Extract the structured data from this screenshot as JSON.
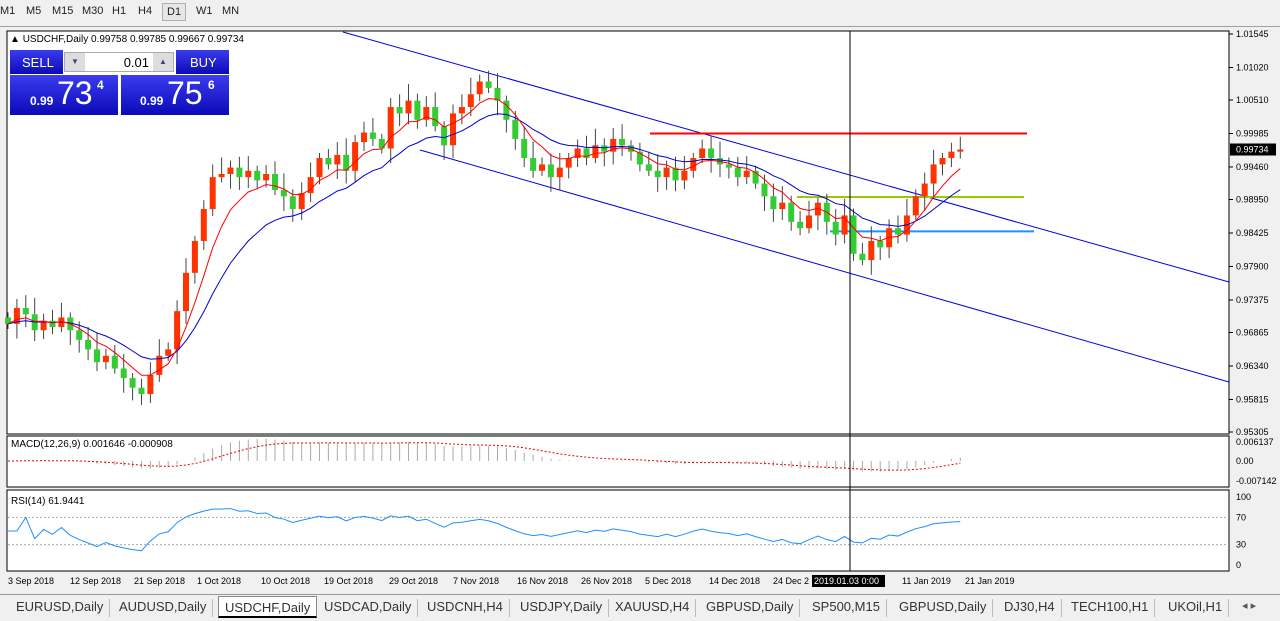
{
  "timeframes": [
    {
      "label": "M1"
    },
    {
      "label": "M5"
    },
    {
      "label": "M15"
    },
    {
      "label": "M30"
    },
    {
      "label": "H1"
    },
    {
      "label": "H4"
    },
    {
      "label": "D1",
      "active": true
    },
    {
      "label": "W1"
    },
    {
      "label": "MN"
    }
  ],
  "chart": {
    "title": "USDCHF,Daily  0.99758 0.99785 0.99667 0.99734",
    "symbol": "USDCHF",
    "timeframe": "Daily",
    "current_price": "0.99734",
    "price_ticks": [
      "1.01545",
      "1.01020",
      "1.00510",
      "0.99985",
      "0.99460",
      "0.98950",
      "0.98425",
      "0.97900",
      "0.97375",
      "0.96865",
      "0.96340",
      "0.95815",
      "0.95305"
    ],
    "date_ticks": [
      "3 Sep 2018",
      "12 Sep 2018",
      "21 Sep 2018",
      "1 Oct 2018",
      "10 Oct 2018",
      "19 Oct 2018",
      "29 Oct 2018",
      "7 Nov 2018",
      "16 Nov 2018",
      "26 Nov 2018",
      "5 Dec 2018",
      "14 Dec 2018",
      "24 Dec 2",
      "11 Jan 2019",
      "21 Jan 2019"
    ],
    "crosshair_date": "2019.01.03 0:00",
    "bull_color": "#ff3300",
    "bear_color": "#33cc33",
    "closes": [
      0.97,
      0.9725,
      0.9715,
      0.969,
      0.9705,
      0.9695,
      0.971,
      0.969,
      0.9675,
      0.966,
      0.964,
      0.965,
      0.963,
      0.9615,
      0.96,
      0.959,
      0.962,
      0.965,
      0.966,
      0.972,
      0.978,
      0.983,
      0.988,
      0.993,
      0.9935,
      0.9945,
      0.993,
      0.994,
      0.9925,
      0.9935,
      0.991,
      0.99,
      0.988,
      0.9905,
      0.993,
      0.996,
      0.995,
      0.9965,
      0.994,
      0.9985,
      1.0,
      0.999,
      0.9975,
      1.004,
      1.003,
      1.005,
      1.002,
      1.004,
      1.001,
      0.998,
      1.003,
      1.004,
      1.006,
      1.008,
      1.007,
      1.005,
      1.002,
      0.999,
      0.996,
      0.994,
      0.995,
      0.993,
      0.9945,
      0.996,
      0.9975,
      0.996,
      0.998,
      0.997,
      0.999,
      0.998,
      0.997,
      0.995,
      0.994,
      0.993,
      0.9945,
      0.9925,
      0.994,
      0.996,
      0.9975,
      0.996,
      0.995,
      0.9945,
      0.993,
      0.994,
      0.992,
      0.99,
      0.988,
      0.989,
      0.986,
      0.985,
      0.987,
      0.989,
      0.986,
      0.984,
      0.987,
      0.981,
      0.98,
      0.983,
      0.982,
      0.985,
      0.984,
      0.987,
      0.99,
      0.992,
      0.995,
      0.996,
      0.997,
      0.99734
    ],
    "levels": [
      {
        "price": 0.99985,
        "color": "#ff0000"
      },
      {
        "price": 0.9899,
        "color": "#99cc00"
      },
      {
        "price": 0.9845,
        "color": "#1e90ff"
      }
    ]
  },
  "trade_panel": {
    "sell_label": "SELL",
    "buy_label": "BUY",
    "lot": "0.01",
    "sell_prefix": "0.99",
    "sell_big": "73",
    "sell_sup": "4",
    "buy_prefix": "0.99",
    "buy_big": "75",
    "buy_sup": "6"
  },
  "macd": {
    "label": "MACD(12,26,9) 0.001646 -0.000908",
    "ticks": [
      "0.006137",
      "0.00",
      "-0.007142"
    ]
  },
  "rsi": {
    "label": "RSI(14) 61.9441",
    "ticks": [
      "100",
      "70",
      "30",
      "0"
    ]
  },
  "tabs": [
    {
      "label": "EURUSD,Daily"
    },
    {
      "label": "AUDUSD,Daily"
    },
    {
      "label": "USDCHF,Daily",
      "active": true
    },
    {
      "label": "USDCAD,Daily"
    },
    {
      "label": "USDCNH,H4"
    },
    {
      "label": "USDJPY,Daily"
    },
    {
      "label": "XAUUSD,H4"
    },
    {
      "label": "GBPUSD,Daily"
    },
    {
      "label": "SP500,M15"
    },
    {
      "label": "GBPUSD,Daily"
    },
    {
      "label": "DJ30,H4"
    },
    {
      "label": "TECH100,H1"
    },
    {
      "label": "UKOil,H1"
    }
  ]
}
